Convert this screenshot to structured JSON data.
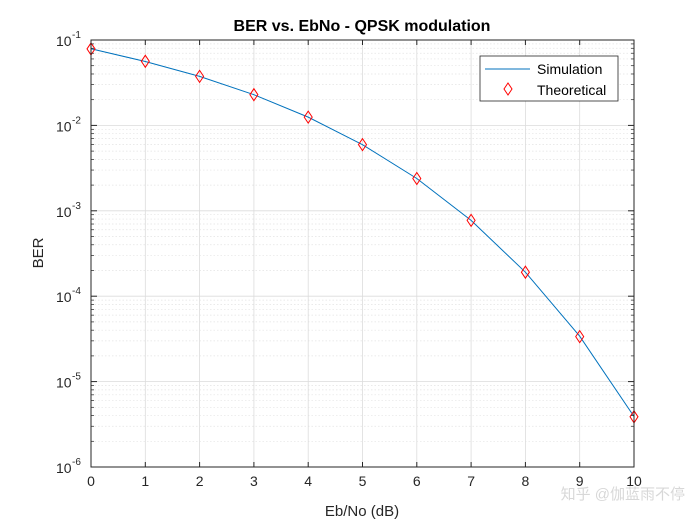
{
  "chart_data": {
    "type": "line",
    "title": "BER vs. EbNo - QPSK modulation",
    "xlabel": "Eb/No (dB)",
    "ylabel": "BER",
    "xlim": [
      0,
      10
    ],
    "ylim": [
      1e-06,
      0.1
    ],
    "yscale": "log",
    "grid": true,
    "minor_grid": true,
    "legend_position": "top-right",
    "x_ticks": [
      0,
      1,
      2,
      3,
      4,
      5,
      6,
      7,
      8,
      9,
      10
    ],
    "x_tick_labels": [
      "0",
      "1",
      "2",
      "3",
      "4",
      "5",
      "6",
      "7",
      "8",
      "9",
      "10"
    ],
    "y_ticks": [
      {
        "value": 0.1,
        "base": "10",
        "exp": "-1"
      },
      {
        "value": 0.01,
        "base": "10",
        "exp": "-2"
      },
      {
        "value": 0.001,
        "base": "10",
        "exp": "-3"
      },
      {
        "value": 0.0001,
        "base": "10",
        "exp": "-4"
      },
      {
        "value": 1e-05,
        "base": "10",
        "exp": "-5"
      },
      {
        "value": 1e-06,
        "base": "10",
        "exp": "-6"
      }
    ],
    "series": [
      {
        "name": "Simulation",
        "style": "line",
        "color": "#0072bd",
        "x": [
          0,
          1,
          2,
          3,
          4,
          5,
          6,
          7,
          8,
          9,
          10
        ],
        "y": [
          0.079,
          0.056,
          0.0375,
          0.0229,
          0.0125,
          0.00595,
          0.00239,
          0.000773,
          0.000191,
          3.4e-05,
          3.9e-06
        ]
      },
      {
        "name": "Theoretical",
        "style": "marker",
        "marker": "diamond",
        "color": "#ff0000",
        "x": [
          0,
          1,
          2,
          3,
          4,
          5,
          6,
          7,
          8,
          9,
          10
        ],
        "y": [
          0.0786,
          0.0563,
          0.0375,
          0.0229,
          0.0125,
          0.00595,
          0.00239,
          0.000773,
          0.000191,
          3.36e-05,
          3.87e-06
        ]
      }
    ]
  },
  "watermark": "知乎 @伽蓝雨不停"
}
